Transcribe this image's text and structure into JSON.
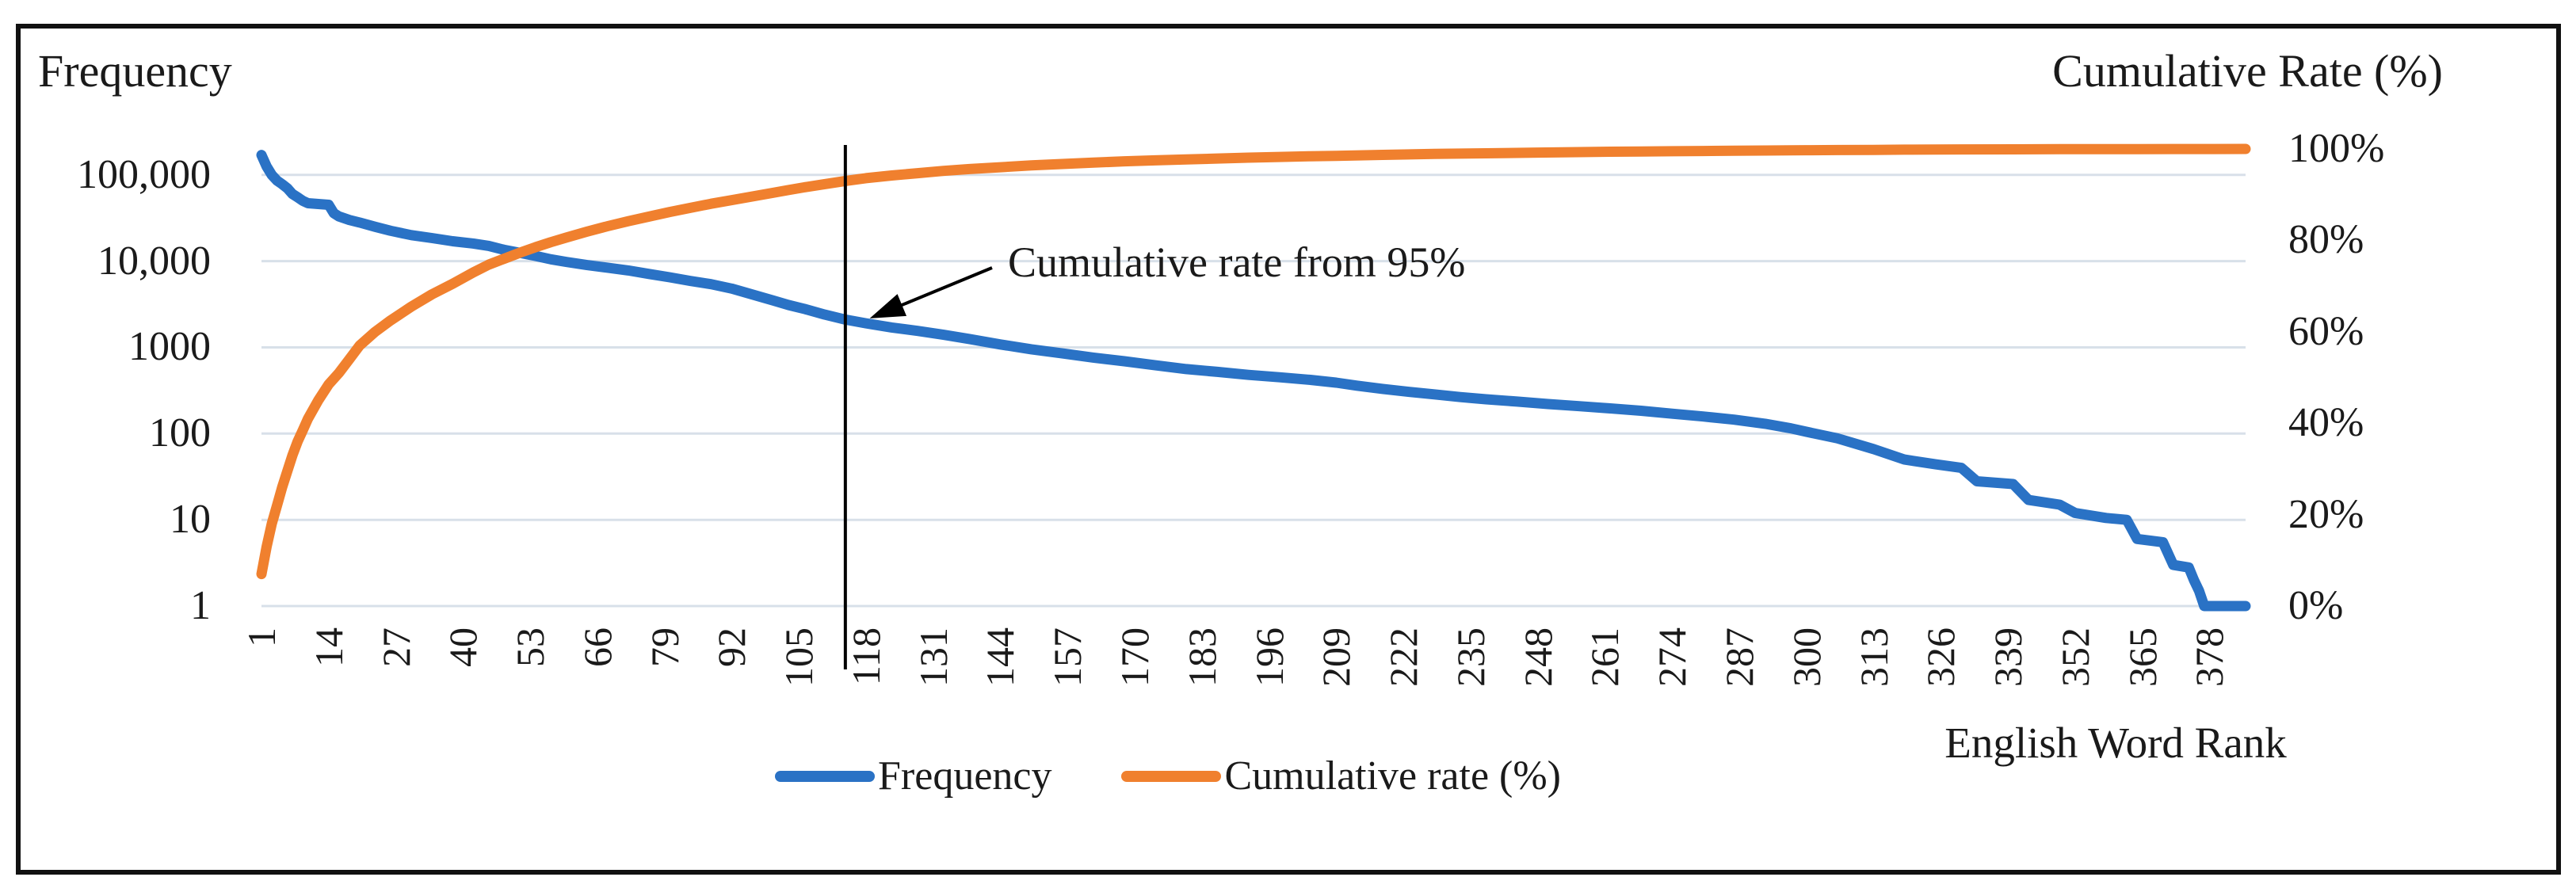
{
  "figure": {
    "left_axis_title": "Frequency",
    "right_axis_title": "Cumulative Rate (%)",
    "x_axis_title": "English Word Rank",
    "annotation": {
      "text": "Cumulative rate from 95%"
    },
    "colors": {
      "frequency_line": "#2A72C5",
      "cumulative_line": "#F0802E",
      "gridline": "#D8E0E9",
      "annotation_line": "#000000",
      "frame_border": "#111111",
      "text": "#1a1a1a"
    }
  },
  "chart_data": {
    "type": "line",
    "title": "",
    "xlabel": "English Word Rank",
    "x_axis": {
      "range": [
        1,
        385
      ],
      "ticks": [
        1,
        14,
        27,
        40,
        53,
        66,
        79,
        92,
        105,
        118,
        131,
        144,
        157,
        170,
        183,
        196,
        209,
        222,
        235,
        248,
        261,
        274,
        287,
        300,
        313,
        326,
        339,
        352,
        365,
        378
      ]
    },
    "left_axis": {
      "label": "Frequency",
      "scale": "log",
      "range": [
        1,
        200000
      ],
      "tick_labels": [
        "100,000",
        "10,000",
        "1000",
        "100",
        "10",
        "1"
      ],
      "tick_values": [
        100000,
        10000,
        1000,
        100,
        10,
        1
      ]
    },
    "right_axis": {
      "label": "Cumulative Rate (%)",
      "scale": "linear",
      "range": [
        0,
        100
      ],
      "tick_labels": [
        "100%",
        "80%",
        "60%",
        "40%",
        "20%",
        "0%"
      ],
      "tick_values": [
        100,
        80,
        60,
        40,
        20,
        0
      ]
    },
    "grid": "horizontal",
    "legend_position": "bottom",
    "annotation": {
      "text": "Cumulative rate from 95%",
      "at_rank": 114
    },
    "series": [
      {
        "name": "Frequency",
        "axis": "left",
        "color": "#2A72C5",
        "points": [
          [
            1,
            170000
          ],
          [
            2,
            125000
          ],
          [
            3,
            100000
          ],
          [
            4,
            86000
          ],
          [
            5,
            78000
          ],
          [
            6,
            70000
          ],
          [
            7,
            60000
          ],
          [
            8,
            55000
          ],
          [
            9,
            50000
          ],
          [
            10,
            47000
          ],
          [
            12,
            46000
          ],
          [
            14,
            45000
          ],
          [
            15,
            36000
          ],
          [
            16,
            33000
          ],
          [
            18,
            30000
          ],
          [
            20,
            28000
          ],
          [
            23,
            25000
          ],
          [
            26,
            22500
          ],
          [
            30,
            20000
          ],
          [
            34,
            18500
          ],
          [
            38,
            17000
          ],
          [
            42,
            16000
          ],
          [
            45,
            15000
          ],
          [
            48,
            13500
          ],
          [
            51,
            12500
          ],
          [
            54,
            11500
          ],
          [
            57,
            10500
          ],
          [
            60,
            9800
          ],
          [
            64,
            9000
          ],
          [
            68,
            8400
          ],
          [
            72,
            7800
          ],
          [
            76,
            7100
          ],
          [
            80,
            6500
          ],
          [
            84,
            5900
          ],
          [
            88,
            5400
          ],
          [
            92,
            4800
          ],
          [
            96,
            4100
          ],
          [
            100,
            3500
          ],
          [
            103,
            3100
          ],
          [
            106,
            2800
          ],
          [
            110,
            2400
          ],
          [
            114,
            2100
          ],
          [
            118,
            1900
          ],
          [
            123,
            1700
          ],
          [
            128,
            1550
          ],
          [
            133,
            1400
          ],
          [
            138,
            1250
          ],
          [
            144,
            1080
          ],
          [
            150,
            950
          ],
          [
            156,
            850
          ],
          [
            162,
            760
          ],
          [
            168,
            690
          ],
          [
            174,
            620
          ],
          [
            180,
            560
          ],
          [
            186,
            520
          ],
          [
            192,
            480
          ],
          [
            198,
            450
          ],
          [
            204,
            420
          ],
          [
            209,
            390
          ],
          [
            213,
            360
          ],
          [
            218,
            330
          ],
          [
            223,
            305
          ],
          [
            228,
            285
          ],
          [
            233,
            265
          ],
          [
            238,
            250
          ],
          [
            244,
            235
          ],
          [
            250,
            220
          ],
          [
            256,
            208
          ],
          [
            262,
            196
          ],
          [
            268,
            184
          ],
          [
            274,
            170
          ],
          [
            280,
            158
          ],
          [
            286,
            145
          ],
          [
            292,
            130
          ],
          [
            297,
            115
          ],
          [
            300,
            105
          ],
          [
            306,
            88
          ],
          [
            313,
            66
          ],
          [
            319,
            50
          ],
          [
            325,
            44
          ],
          [
            330,
            40
          ],
          [
            333,
            28
          ],
          [
            340,
            26
          ],
          [
            343,
            17
          ],
          [
            349,
            15
          ],
          [
            352,
            12
          ],
          [
            358,
            10.5
          ],
          [
            362,
            10
          ],
          [
            364,
            6
          ],
          [
            369,
            5.5
          ],
          [
            371,
            3
          ],
          [
            374,
            2.8
          ],
          [
            375,
            2
          ],
          [
            376,
            1.5
          ],
          [
            377,
            1
          ],
          [
            385,
            1
          ]
        ]
      },
      {
        "name": "Cumulative rate (%)",
        "axis": "right",
        "color": "#F0802E",
        "points": [
          [
            1,
            7
          ],
          [
            2,
            13
          ],
          [
            3,
            18
          ],
          [
            4,
            22
          ],
          [
            5,
            26
          ],
          [
            6,
            29.5
          ],
          [
            7,
            33
          ],
          [
            8,
            36
          ],
          [
            9,
            38.5
          ],
          [
            10,
            41
          ],
          [
            12,
            45
          ],
          [
            14,
            48.5
          ],
          [
            16,
            51
          ],
          [
            18,
            54
          ],
          [
            20,
            57
          ],
          [
            23,
            60
          ],
          [
            26,
            62.5
          ],
          [
            30,
            65.5
          ],
          [
            34,
            68.2
          ],
          [
            38,
            70.5
          ],
          [
            42,
            73
          ],
          [
            45,
            74.7
          ],
          [
            48,
            76
          ],
          [
            51,
            77.3
          ],
          [
            54,
            78.5
          ],
          [
            57,
            79.6
          ],
          [
            60,
            80.6
          ],
          [
            64,
            81.9
          ],
          [
            68,
            83.1
          ],
          [
            72,
            84.2
          ],
          [
            76,
            85.2
          ],
          [
            80,
            86.2
          ],
          [
            84,
            87.1
          ],
          [
            88,
            88
          ],
          [
            92,
            88.8
          ],
          [
            96,
            89.6
          ],
          [
            100,
            90.4
          ],
          [
            103,
            91
          ],
          [
            106,
            91.6
          ],
          [
            110,
            92.3
          ],
          [
            114,
            93
          ],
          [
            118,
            93.6
          ],
          [
            123,
            94.2
          ],
          [
            128,
            94.7
          ],
          [
            133,
            95.2
          ],
          [
            138,
            95.6
          ],
          [
            144,
            96
          ],
          [
            150,
            96.4
          ],
          [
            156,
            96.7
          ],
          [
            162,
            97
          ],
          [
            168,
            97.3
          ],
          [
            174,
            97.5
          ],
          [
            180,
            97.7
          ],
          [
            186,
            97.9
          ],
          [
            192,
            98.1
          ],
          [
            198,
            98.25
          ],
          [
            204,
            98.4
          ],
          [
            209,
            98.5
          ],
          [
            218,
            98.7
          ],
          [
            228,
            98.9
          ],
          [
            238,
            99.05
          ],
          [
            248,
            99.2
          ],
          [
            256,
            99.3
          ],
          [
            262,
            99.4
          ],
          [
            268,
            99.45
          ],
          [
            274,
            99.5
          ],
          [
            280,
            99.55
          ],
          [
            286,
            99.6
          ],
          [
            292,
            99.65
          ],
          [
            297,
            99.7
          ],
          [
            300,
            99.72
          ],
          [
            306,
            99.76
          ],
          [
            313,
            99.8
          ],
          [
            319,
            99.84
          ],
          [
            325,
            99.87
          ],
          [
            330,
            99.89
          ],
          [
            340,
            99.92
          ],
          [
            349,
            99.94
          ],
          [
            358,
            99.96
          ],
          [
            364,
            99.97
          ],
          [
            371,
            99.98
          ],
          [
            377,
            99.99
          ],
          [
            385,
            100
          ]
        ]
      }
    ]
  }
}
